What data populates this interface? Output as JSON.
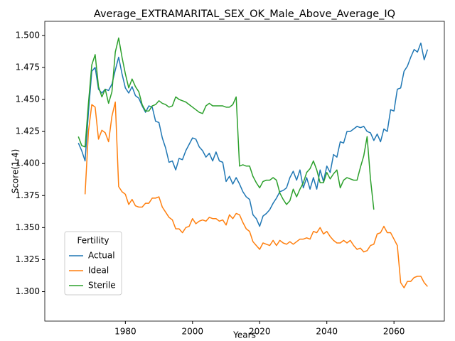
{
  "chart_data": {
    "type": "line",
    "title": "Average_EXTRAMARITAL_SEX_OK_Male_Above_Average_IQ",
    "xlabel": "Years",
    "ylabel": "Score(1-4)",
    "legend_title": "Fertility",
    "legend": "lower left",
    "grid": false,
    "x": [
      1966,
      1967,
      1968,
      1969,
      1970,
      1971,
      1972,
      1973,
      1974,
      1975,
      1976,
      1977,
      1978,
      1979,
      1980,
      1981,
      1982,
      1983,
      1984,
      1985,
      1986,
      1987,
      1988,
      1989,
      1990,
      1991,
      1992,
      1993,
      1994,
      1995,
      1996,
      1997,
      1998,
      1999,
      2000,
      2001,
      2002,
      2003,
      2004,
      2005,
      2006,
      2007,
      2008,
      2009,
      2010,
      2011,
      2012,
      2013,
      2014,
      2015,
      2016,
      2017,
      2018,
      2019,
      2020,
      2021,
      2022,
      2023,
      2024,
      2025,
      2026,
      2027,
      2028,
      2029,
      2030,
      2031,
      2032,
      2033,
      2034,
      2035,
      2036,
      2037,
      2038,
      2039,
      2040,
      2041,
      2042,
      2043,
      2044,
      2045,
      2046,
      2047,
      2048,
      2049,
      2050,
      2051,
      2052,
      2053,
      2054,
      2055,
      2056,
      2057,
      2058,
      2059,
      2060,
      2061,
      2062,
      2063,
      2064,
      2065,
      2066,
      2067,
      2068,
      2069,
      2070
    ],
    "xlim": [
      1956,
      2075
    ],
    "xticks": [
      1980,
      2000,
      2020,
      2040,
      2060
    ],
    "ylim": [
      1.277,
      1.511
    ],
    "yticks": [
      {
        "value": 1.3,
        "label": "1.300"
      },
      {
        "value": 1.325,
        "label": "1.325"
      },
      {
        "value": 1.35,
        "label": "1.350"
      },
      {
        "value": 1.375,
        "label": "1.375"
      },
      {
        "value": 1.4,
        "label": "1.400"
      },
      {
        "value": 1.425,
        "label": "1.425"
      },
      {
        "value": 1.45,
        "label": "1.450"
      },
      {
        "value": 1.475,
        "label": "1.475"
      },
      {
        "value": 1.5,
        "label": "1.500"
      }
    ],
    "series": [
      {
        "name": "Actual",
        "color": "#1f77b4",
        "values": [
          1.416,
          1.41,
          1.402,
          1.44,
          1.472,
          1.475,
          1.458,
          1.455,
          1.458,
          1.457,
          1.462,
          1.473,
          1.483,
          1.47,
          1.459,
          1.455,
          1.46,
          1.453,
          1.451,
          1.445,
          1.44,
          1.445,
          1.444,
          1.433,
          1.432,
          1.42,
          1.412,
          1.401,
          1.402,
          1.395,
          1.404,
          1.403,
          1.41,
          1.415,
          1.42,
          1.419,
          1.413,
          1.41,
          1.405,
          1.408,
          1.402,
          1.409,
          1.402,
          1.401,
          1.386,
          1.39,
          1.384,
          1.389,
          1.384,
          1.378,
          1.374,
          1.372,
          1.36,
          1.357,
          1.351,
          1.359,
          1.361,
          1.364,
          1.369,
          1.373,
          1.378,
          1.379,
          1.381,
          1.389,
          1.394,
          1.387,
          1.395,
          1.381,
          1.389,
          1.38,
          1.389,
          1.38,
          1.395,
          1.386,
          1.398,
          1.393,
          1.407,
          1.405,
          1.417,
          1.416,
          1.425,
          1.425,
          1.427,
          1.429,
          1.428,
          1.429,
          1.425,
          1.424,
          1.418,
          1.423,
          1.417,
          1.427,
          1.425,
          1.442,
          1.441,
          1.458,
          1.459,
          1.472,
          1.476,
          1.483,
          1.489,
          1.487,
          1.494,
          1.481,
          1.489
        ]
      },
      {
        "name": "Ideal",
        "color": "#ff7f0e",
        "values": [
          null,
          null,
          1.376,
          1.425,
          1.446,
          1.444,
          1.419,
          1.426,
          1.424,
          1.417,
          1.437,
          1.448,
          1.382,
          1.378,
          1.376,
          1.368,
          1.372,
          1.367,
          1.366,
          1.366,
          1.369,
          1.369,
          1.373,
          1.373,
          1.374,
          1.366,
          1.362,
          1.358,
          1.356,
          1.349,
          1.349,
          1.346,
          1.35,
          1.351,
          1.357,
          1.353,
          1.355,
          1.356,
          1.355,
          1.358,
          1.357,
          1.357,
          1.355,
          1.356,
          1.352,
          1.36,
          1.357,
          1.361,
          1.36,
          1.354,
          1.349,
          1.347,
          1.339,
          1.336,
          1.333,
          1.338,
          1.337,
          1.336,
          1.34,
          1.336,
          1.34,
          1.338,
          1.337,
          1.339,
          1.337,
          1.339,
          1.341,
          1.341,
          1.342,
          1.341,
          1.347,
          1.346,
          1.35,
          1.345,
          1.347,
          1.343,
          1.34,
          1.338,
          1.338,
          1.34,
          1.338,
          1.34,
          1.336,
          1.333,
          1.334,
          1.331,
          1.332,
          1.336,
          1.337,
          1.345,
          1.346,
          1.351,
          1.346,
          1.346,
          1.341,
          1.336,
          1.307,
          1.303,
          1.308,
          1.308,
          1.311,
          1.312,
          1.312,
          1.307,
          1.304
        ]
      },
      {
        "name": "Sterile",
        "color": "#2ca02c",
        "values": [
          1.421,
          1.414,
          1.413,
          1.447,
          1.477,
          1.485,
          1.46,
          1.452,
          1.458,
          1.447,
          1.456,
          1.487,
          1.498,
          1.483,
          1.47,
          1.459,
          1.466,
          1.46,
          1.456,
          1.446,
          1.441,
          1.441,
          1.445,
          1.446,
          1.449,
          1.447,
          1.446,
          1.444,
          1.445,
          1.452,
          1.45,
          1.449,
          1.448,
          1.446,
          1.444,
          1.442,
          1.44,
          1.439,
          1.445,
          1.447,
          1.445,
          1.445,
          1.445,
          1.445,
          1.444,
          1.444,
          1.446,
          1.452,
          1.398,
          1.399,
          1.398,
          1.398,
          1.39,
          1.385,
          1.381,
          1.386,
          1.387,
          1.387,
          1.389,
          1.387,
          1.377,
          1.372,
          1.368,
          1.371,
          1.38,
          1.374,
          1.38,
          1.385,
          1.393,
          1.396,
          1.402,
          1.395,
          1.385,
          1.385,
          1.393,
          1.388,
          1.392,
          1.395,
          1.381,
          1.387,
          1.389,
          1.388,
          1.387,
          1.387,
          1.397,
          1.406,
          1.421,
          1.388,
          1.364,
          null,
          null,
          null,
          null,
          null,
          null,
          null,
          null,
          null,
          null,
          null,
          null,
          null,
          null,
          null,
          null
        ]
      }
    ]
  }
}
